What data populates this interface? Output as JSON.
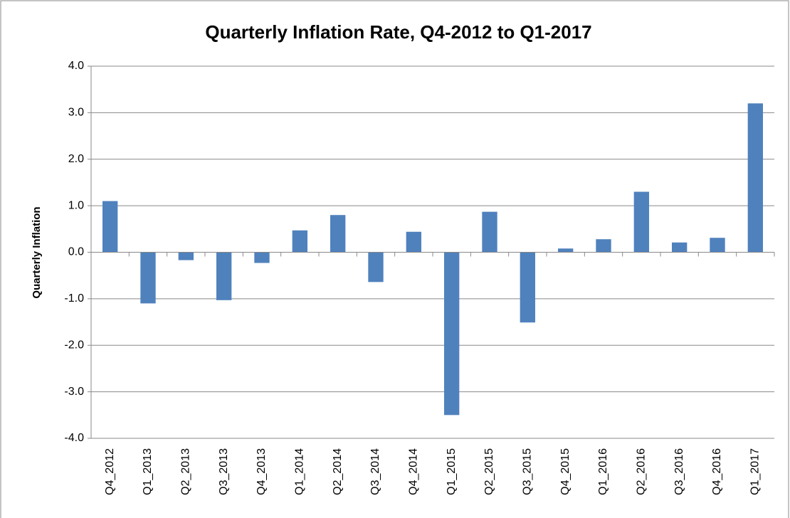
{
  "chart_data": {
    "type": "bar",
    "title": "Quarterly Inflation Rate, Q4-2012 to Q1-2017",
    "y_label": "Quarterly Inflation",
    "categories": [
      "Q4_2012",
      "Q1_2013",
      "Q2_2013",
      "Q3_2013",
      "Q4_2013",
      "Q1_2014",
      "Q2_2014",
      "Q3_2014",
      "Q4_2014",
      "Q1_2015",
      "Q2_2015",
      "Q3_2015",
      "Q4_2015",
      "Q1_2016",
      "Q2_2016",
      "Q3_2016",
      "Q4_2016",
      "Q1_2017"
    ],
    "values": [
      1.1,
      -1.1,
      -0.17,
      -1.03,
      -0.23,
      0.47,
      0.8,
      -0.64,
      0.44,
      -3.5,
      0.87,
      -1.51,
      0.08,
      0.28,
      1.3,
      0.21,
      0.31,
      3.2
    ],
    "color": "#4f81bd",
    "ylim": [
      -4,
      4
    ],
    "yticks": [
      {
        "value": -4,
        "label": "-4.0"
      },
      {
        "value": -3,
        "label": "-3.0"
      },
      {
        "value": -2,
        "label": "-2.0"
      },
      {
        "value": -1,
        "label": "-1.0"
      },
      {
        "value": 0,
        "label": "0.0"
      },
      {
        "value": 1,
        "label": "1.0"
      },
      {
        "value": 2,
        "label": "2.0"
      },
      {
        "value": 3,
        "label": "3.0"
      },
      {
        "value": 4,
        "label": "4.0"
      }
    ],
    "grid": true
  }
}
